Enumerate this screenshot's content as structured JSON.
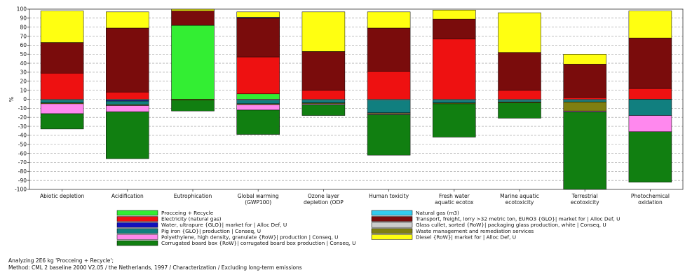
{
  "captions": {
    "line1": "Analyzing 2E6 kg 'Procceing + Recycle';",
    "line2": "Method: CML 2 baseline 2000 V2.05 / the Netherlands, 1997 / Characterization / Excluding long-term emissions"
  },
  "chart_data": {
    "type": "bar",
    "stacked": true,
    "ylabel": "%",
    "ylim": [
      -100,
      100
    ],
    "ytick_step": 10,
    "grid": true,
    "legend_placement": "bottom",
    "categories": [
      "Abiotic depletion",
      "Acidification",
      "Eutrophication",
      "Global warming (GWP100)",
      "Ozone layer depletion (ODP",
      "Human toxicity",
      "Fresh water aquatic ecotox",
      "Marine aquatic ecotoxicity",
      "Terrestrial ecotoxicity",
      "Photochemical oxidation"
    ],
    "category_lines": [
      [
        "Abiotic depletion"
      ],
      [
        "Acidification"
      ],
      [
        "Eutrophication"
      ],
      [
        "Global warming",
        "(GWP100)"
      ],
      [
        "Ozone layer",
        "depletion (ODP"
      ],
      [
        "Human toxicity"
      ],
      [
        "Fresh water",
        "aquatic ecotox"
      ],
      [
        "Marine aquatic",
        "ecotoxicity"
      ],
      [
        "Terrestrial",
        "ecotoxicity"
      ],
      [
        "Photochemical",
        "oxidation"
      ]
    ],
    "series": [
      {
        "name": "Procceing + Recycle",
        "color": "#33ee33",
        "values": [
          0,
          0,
          82,
          6,
          0,
          0,
          0,
          0,
          0,
          0
        ]
      },
      {
        "name": "Natural gas (m3)",
        "color": "#33ccee",
        "values": [
          0,
          0,
          0,
          0,
          0,
          0,
          0,
          0,
          0,
          0
        ]
      },
      {
        "name": "Electricity (natural gas)",
        "color": "#ee1111",
        "values": [
          29,
          8,
          0,
          41,
          10,
          31,
          67,
          10,
          2,
          12
        ]
      },
      {
        "name": "Transport, freight, lorry >32 metric ton, EURO3 {GLO}| market for | Alloc Def, U",
        "color": "#7a0c0c",
        "values": [
          34,
          71,
          16,
          43,
          43,
          48,
          22,
          42,
          37,
          56
        ]
      },
      {
        "name": "Water, ultrapure {GLO}| market for | Alloc Def, U",
        "color": "#1111bb",
        "values": [
          0,
          -1,
          0,
          1,
          0,
          0,
          0,
          0,
          0,
          0
        ]
      },
      {
        "name": "Glass cullet, sorted {RoW}| packaging glass production, white | Conseq, U",
        "color": "#cccccc",
        "values": [
          -1,
          -1,
          0,
          -1,
          -1,
          -1,
          -1,
          -1,
          -1,
          0
        ]
      },
      {
        "name": "Pig iron {GLO}| production | Conseq, U",
        "color": "#117f7f",
        "values": [
          -3,
          -4,
          0,
          -4,
          -3,
          -14,
          -3,
          -2,
          -2,
          -18
        ]
      },
      {
        "name": "Waste management and remediation services",
        "color": "#7f7f11",
        "values": [
          -1,
          -1,
          -1,
          -1,
          -1,
          -1,
          -1,
          -1,
          -10,
          0
        ]
      },
      {
        "name": "Polyethylene, high density, granulate {RoW}| production | Conseq, U",
        "color": "#ff88ee",
        "values": [
          -11,
          -7,
          0,
          -6,
          -1,
          -1,
          0,
          0,
          -1,
          -18
        ]
      },
      {
        "name": "Diesel {RoW}| market for | Alloc Def, U",
        "color": "#ffff11",
        "values": [
          35,
          18,
          2,
          6,
          44,
          18,
          10,
          44,
          11,
          30
        ]
      },
      {
        "name": "Corrugated board box {RoW}| corrugated board box production | Conseq, U",
        "color": "#117f11",
        "values": [
          -17,
          -52,
          -12,
          -27,
          -12,
          -45,
          -37,
          -17,
          -86,
          -56
        ]
      }
    ],
    "legend_columns": [
      [
        "Procceing + Recycle",
        "Electricity (natural gas)",
        "Water, ultrapure {GLO}| market for | Alloc Def, U",
        "Pig iron {GLO}| production | Conseq, U",
        "Polyethylene, high density, granulate {RoW}| production | Conseq, U",
        "Corrugated board box {RoW}| corrugated board box production | Conseq, U"
      ],
      [
        "Natural gas (m3)",
        "Transport, freight, lorry >32 metric ton, EURO3 {GLO}| market for | Alloc Def, U",
        "Glass cullet, sorted {RoW}| packaging glass production, white | Conseq, U",
        "Waste management and remediation services",
        "Diesel {RoW}| market for | Alloc Def, U"
      ]
    ],
    "positive_stack_order": [
      "Procceing + Recycle",
      "Electricity (natural gas)",
      "Transport, freight, lorry >32 metric ton, EURO3 {GLO}| market for | Alloc Def, U",
      "Water, ultrapure {GLO}| market for | Alloc Def, U",
      "Diesel {RoW}| market for | Alloc Def, U"
    ],
    "negative_stack_order": [
      "Glass cullet, sorted {RoW}| packaging glass production, white | Conseq, U",
      "Water, ultrapure {GLO}| market for | Alloc Def, U",
      "Pig iron {GLO}| production | Conseq, U",
      "Waste management and remediation services",
      "Polyethylene, high density, granulate {RoW}| production | Conseq, U",
      "Corrugated board box {RoW}| corrugated board box production | Conseq, U"
    ]
  }
}
